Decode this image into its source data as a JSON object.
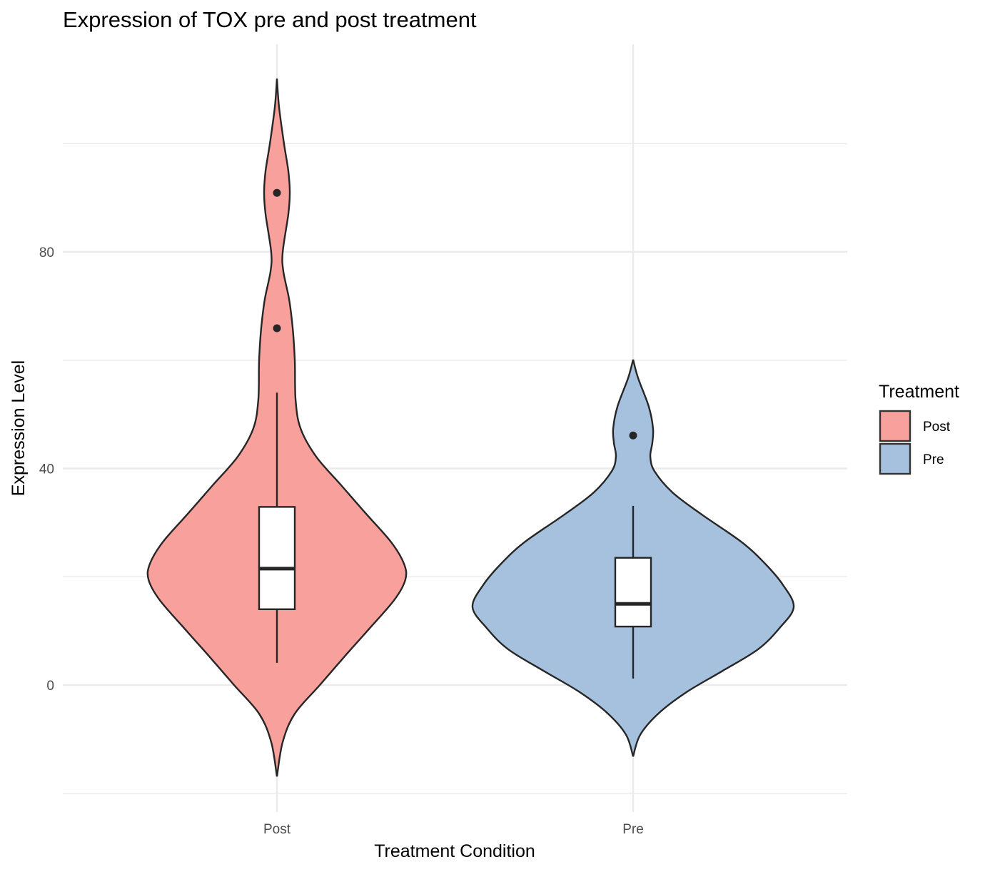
{
  "chart_data": {
    "type": "violin",
    "title": "Expression of TOX pre and post treatment",
    "xlabel": "Treatment Condition",
    "ylabel": "Expression Level",
    "categories": [
      "Post",
      "Pre"
    ],
    "ylim": [
      -20,
      120
    ],
    "yticks": [
      0,
      40,
      80
    ],
    "yticks_minor": [
      -20,
      20,
      60,
      100
    ],
    "grid": true,
    "legend": {
      "title": "Treatment",
      "position": "right",
      "entries": [
        {
          "label": "Post",
          "color": "#F8A19C"
        },
        {
          "label": "Pre",
          "color": "#A6C1DD"
        }
      ]
    },
    "series": [
      {
        "name": "Post",
        "color": "#F8A19C",
        "box": {
          "lower_whisker": 4.1,
          "q1": 14.0,
          "median": 21.5,
          "q3": 32.9,
          "upper_whisker": 54.0
        },
        "outliers": [
          65.9,
          90.9
        ],
        "density_profile": [
          [
            112.0,
            0
          ],
          [
            106.8,
            0.013
          ],
          [
            100,
            0.044
          ],
          [
            94.9,
            0.071
          ],
          [
            90.9,
            0.08
          ],
          [
            87,
            0.071
          ],
          [
            80,
            0.036
          ],
          [
            76.4,
            0.04
          ],
          [
            71.2,
            0.076
          ],
          [
            65.9,
            0.098
          ],
          [
            60,
            0.111
          ],
          [
            52.7,
            0.116
          ],
          [
            47.4,
            0.147
          ],
          [
            42.2,
            0.244
          ],
          [
            36.9,
            0.4
          ],
          [
            31.6,
            0.556
          ],
          [
            26.4,
            0.711
          ],
          [
            22.4,
            0.791
          ],
          [
            19.5,
            0.8
          ],
          [
            15.8,
            0.733
          ],
          [
            10.5,
            0.578
          ],
          [
            5.3,
            0.422
          ],
          [
            0,
            0.267
          ],
          [
            -5.3,
            0.111
          ],
          [
            -10.5,
            0.036
          ],
          [
            -16.9,
            0
          ]
        ]
      },
      {
        "name": "Pre",
        "color": "#A6C1DD",
        "box": {
          "lower_whisker": 1.2,
          "q1": 10.8,
          "median": 15.0,
          "q3": 23.5,
          "upper_whisker": 33.1
        },
        "outliers": [
          46.1
        ],
        "density_profile": [
          [
            60.1,
            0
          ],
          [
            56.7,
            0.031
          ],
          [
            51.4,
            0.098
          ],
          [
            47.4,
            0.124
          ],
          [
            44.8,
            0.12
          ],
          [
            42.2,
            0.107
          ],
          [
            39.5,
            0.133
          ],
          [
            35.6,
            0.244
          ],
          [
            31.6,
            0.422
          ],
          [
            26.4,
            0.676
          ],
          [
            22.4,
            0.822
          ],
          [
            18.5,
            0.933
          ],
          [
            14.4,
            1.0
          ],
          [
            10.5,
            0.911
          ],
          [
            6.6,
            0.778
          ],
          [
            2.6,
            0.556
          ],
          [
            -1.3,
            0.333
          ],
          [
            -5.3,
            0.156
          ],
          [
            -9.2,
            0.044
          ],
          [
            -13.2,
            0
          ]
        ]
      }
    ]
  }
}
